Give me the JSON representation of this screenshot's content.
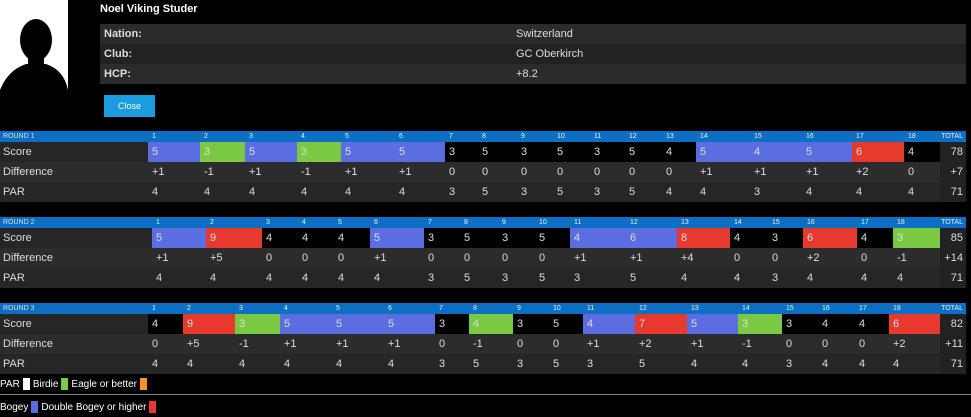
{
  "player": {
    "name": "Noel Viking Studer",
    "info": [
      {
        "key": "Nation:",
        "value": "Switzerland"
      },
      {
        "key": "Club:",
        "value": "GC Oberkirch"
      },
      {
        "key": "HCP:",
        "value": "+8.2"
      }
    ],
    "close_label": "Close"
  },
  "colors": {
    "par": "#000000",
    "birdie": "#7ac943",
    "eagle": "#f7931e",
    "bogey": "#5b6ee1",
    "double": "#e8392f",
    "header": "#0c6fc4"
  },
  "row_labels": {
    "score": "Score",
    "difference": "Difference",
    "par": "PAR",
    "total": "TOTAL"
  },
  "holes": [
    "1",
    "2",
    "3",
    "4",
    "5",
    "6",
    "7",
    "8",
    "9",
    "10",
    "11",
    "12",
    "13",
    "14",
    "15",
    "16",
    "17",
    "18"
  ],
  "rounds": [
    {
      "title": "ROUND 1",
      "score": [
        5,
        3,
        5,
        3,
        5,
        5,
        3,
        5,
        3,
        5,
        3,
        5,
        4,
        5,
        4,
        5,
        6,
        4
      ],
      "score_total": "78",
      "difference": [
        "+1",
        "-1",
        "+1",
        "-1",
        "+1",
        "+1",
        "0",
        "0",
        "0",
        "0",
        "0",
        "0",
        "0",
        "+1",
        "+1",
        "+1",
        "+2",
        "0"
      ],
      "difference_total": "+7",
      "par": [
        4,
        4,
        4,
        4,
        4,
        4,
        3,
        5,
        3,
        5,
        3,
        5,
        4,
        4,
        3,
        4,
        4,
        4
      ],
      "par_total": "71"
    },
    {
      "title": "ROUND 2",
      "score": [
        5,
        9,
        4,
        4,
        4,
        5,
        3,
        5,
        3,
        5,
        4,
        6,
        8,
        4,
        3,
        6,
        4,
        3
      ],
      "score_total": "85",
      "difference": [
        "+1",
        "+5",
        "0",
        "0",
        "0",
        "+1",
        "0",
        "0",
        "0",
        "0",
        "+1",
        "+1",
        "+4",
        "0",
        "0",
        "+2",
        "0",
        "-1"
      ],
      "difference_total": "+14",
      "par": [
        4,
        4,
        4,
        4,
        4,
        4,
        3,
        5,
        3,
        5,
        3,
        5,
        4,
        4,
        3,
        4,
        4,
        4
      ],
      "par_total": "71"
    },
    {
      "title": "ROUND 3",
      "score": [
        4,
        9,
        3,
        5,
        5,
        5,
        3,
        4,
        3,
        5,
        4,
        7,
        5,
        3,
        3,
        4,
        4,
        6
      ],
      "score_total": "82",
      "difference": [
        "0",
        "+5",
        "-1",
        "+1",
        "+1",
        "+1",
        "0",
        "-1",
        "0",
        "0",
        "+1",
        "+2",
        "+1",
        "-1",
        "0",
        "0",
        "0",
        "+2"
      ],
      "difference_total": "+11",
      "par": [
        4,
        4,
        4,
        4,
        4,
        4,
        3,
        5,
        3,
        5,
        3,
        5,
        4,
        4,
        3,
        4,
        4,
        4
      ],
      "par_total": "71"
    }
  ],
  "legend": [
    {
      "label": "PAR",
      "type": "par"
    },
    {
      "label": "Birdie",
      "type": "birdie"
    },
    {
      "label": "Eagle or better",
      "type": "eagle"
    },
    {
      "label": "Bogey",
      "type": "bogey"
    },
    {
      "label": "Double Bogey or higher",
      "type": "double"
    }
  ]
}
